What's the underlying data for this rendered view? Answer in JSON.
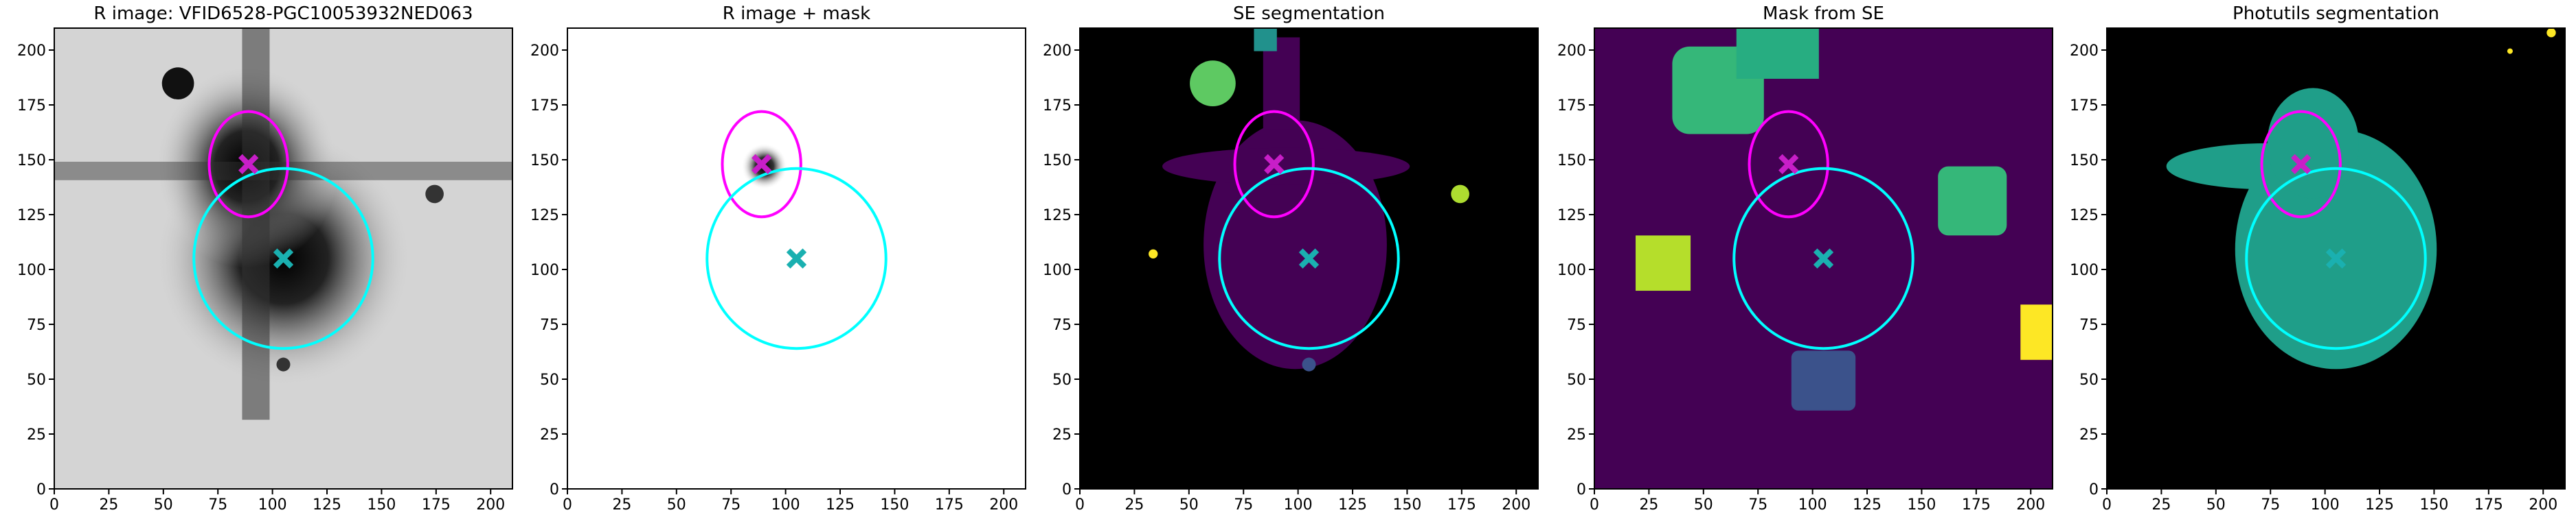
{
  "chart_data": [
    {
      "type": "image",
      "title": "R image: VFID6528-PGC10053932NED063",
      "background": "#d4d4d4",
      "xlim": [
        0,
        210
      ],
      "ylim": [
        0,
        210
      ],
      "xticks": [
        0,
        25,
        50,
        75,
        100,
        125,
        150,
        175,
        200
      ],
      "yticks": [
        0,
        25,
        50,
        75,
        100,
        125,
        150,
        175,
        200
      ],
      "markers": [
        {
          "x": 89,
          "y": 148,
          "color": "#c81ec8"
        },
        {
          "x": 105,
          "y": 105,
          "color": "#1ab0b0"
        }
      ],
      "ellipses": [
        {
          "cx": 89,
          "cy": 148,
          "rx": 18,
          "ry": 24,
          "color": "#ff00ff"
        },
        {
          "cx": 105,
          "cy": 105,
          "rx": 41,
          "ry": 41,
          "color": "#00ffff"
        }
      ]
    },
    {
      "type": "image",
      "title": "R image + mask",
      "background": "#ffffff",
      "xlim": [
        0,
        210
      ],
      "ylim": [
        0,
        210
      ],
      "xticks": [
        0,
        25,
        50,
        75,
        100,
        125,
        150,
        175,
        200
      ],
      "yticks": [
        0,
        25,
        50,
        75,
        100,
        125,
        150,
        175,
        200
      ],
      "markers": [
        {
          "x": 89,
          "y": 148,
          "color": "#c81ec8"
        },
        {
          "x": 105,
          "y": 105,
          "color": "#1ab0b0"
        }
      ],
      "ellipses": [
        {
          "cx": 89,
          "cy": 148,
          "rx": 18,
          "ry": 24,
          "color": "#ff00ff"
        },
        {
          "cx": 105,
          "cy": 105,
          "rx": 41,
          "ry": 41,
          "color": "#00ffff"
        }
      ]
    },
    {
      "type": "image",
      "title": "SE segmentation",
      "background": "#000000",
      "xlim": [
        0,
        210
      ],
      "ylim": [
        0,
        210
      ],
      "xticks": [
        0,
        25,
        50,
        75,
        100,
        125,
        150,
        175,
        200
      ],
      "yticks": [
        0,
        25,
        50,
        75,
        100,
        125,
        150,
        175,
        200
      ],
      "markers": [
        {
          "x": 89,
          "y": 148,
          "color": "#c81ec8"
        },
        {
          "x": 105,
          "y": 105,
          "color": "#1ab0b0"
        }
      ],
      "ellipses": [
        {
          "cx": 89,
          "cy": 148,
          "rx": 18,
          "ry": 24,
          "color": "#ff00ff"
        },
        {
          "cx": 105,
          "cy": 105,
          "rx": 41,
          "ry": 41,
          "color": "#00ffff"
        }
      ]
    },
    {
      "type": "image",
      "title": "Mask from SE",
      "background": "#440154",
      "xlim": [
        0,
        210
      ],
      "ylim": [
        0,
        210
      ],
      "xticks": [
        0,
        25,
        50,
        75,
        100,
        125,
        150,
        175,
        200
      ],
      "yticks": [
        0,
        25,
        50,
        75,
        100,
        125,
        150,
        175,
        200
      ],
      "markers": [
        {
          "x": 89,
          "y": 148,
          "color": "#c81ec8"
        },
        {
          "x": 105,
          "y": 105,
          "color": "#1ab0b0"
        }
      ],
      "ellipses": [
        {
          "cx": 89,
          "cy": 148,
          "rx": 18,
          "ry": 24,
          "color": "#ff00ff"
        },
        {
          "cx": 105,
          "cy": 105,
          "rx": 41,
          "ry": 41,
          "color": "#00ffff"
        }
      ]
    },
    {
      "type": "image",
      "title": "Photutils segmentation",
      "background": "#000000",
      "xlim": [
        0,
        210
      ],
      "ylim": [
        0,
        210
      ],
      "xticks": [
        0,
        25,
        50,
        75,
        100,
        125,
        150,
        175,
        200
      ],
      "yticks": [
        0,
        25,
        50,
        75,
        100,
        125,
        150,
        175,
        200
      ],
      "markers": [
        {
          "x": 89,
          "y": 148,
          "color": "#c81ec8"
        },
        {
          "x": 105,
          "y": 105,
          "color": "#1ab0b0"
        }
      ],
      "ellipses": [
        {
          "cx": 89,
          "cy": 148,
          "rx": 18,
          "ry": 24,
          "color": "#ff00ff"
        },
        {
          "cx": 105,
          "cy": 105,
          "rx": 41,
          "ry": 41,
          "color": "#00ffff"
        }
      ]
    }
  ]
}
